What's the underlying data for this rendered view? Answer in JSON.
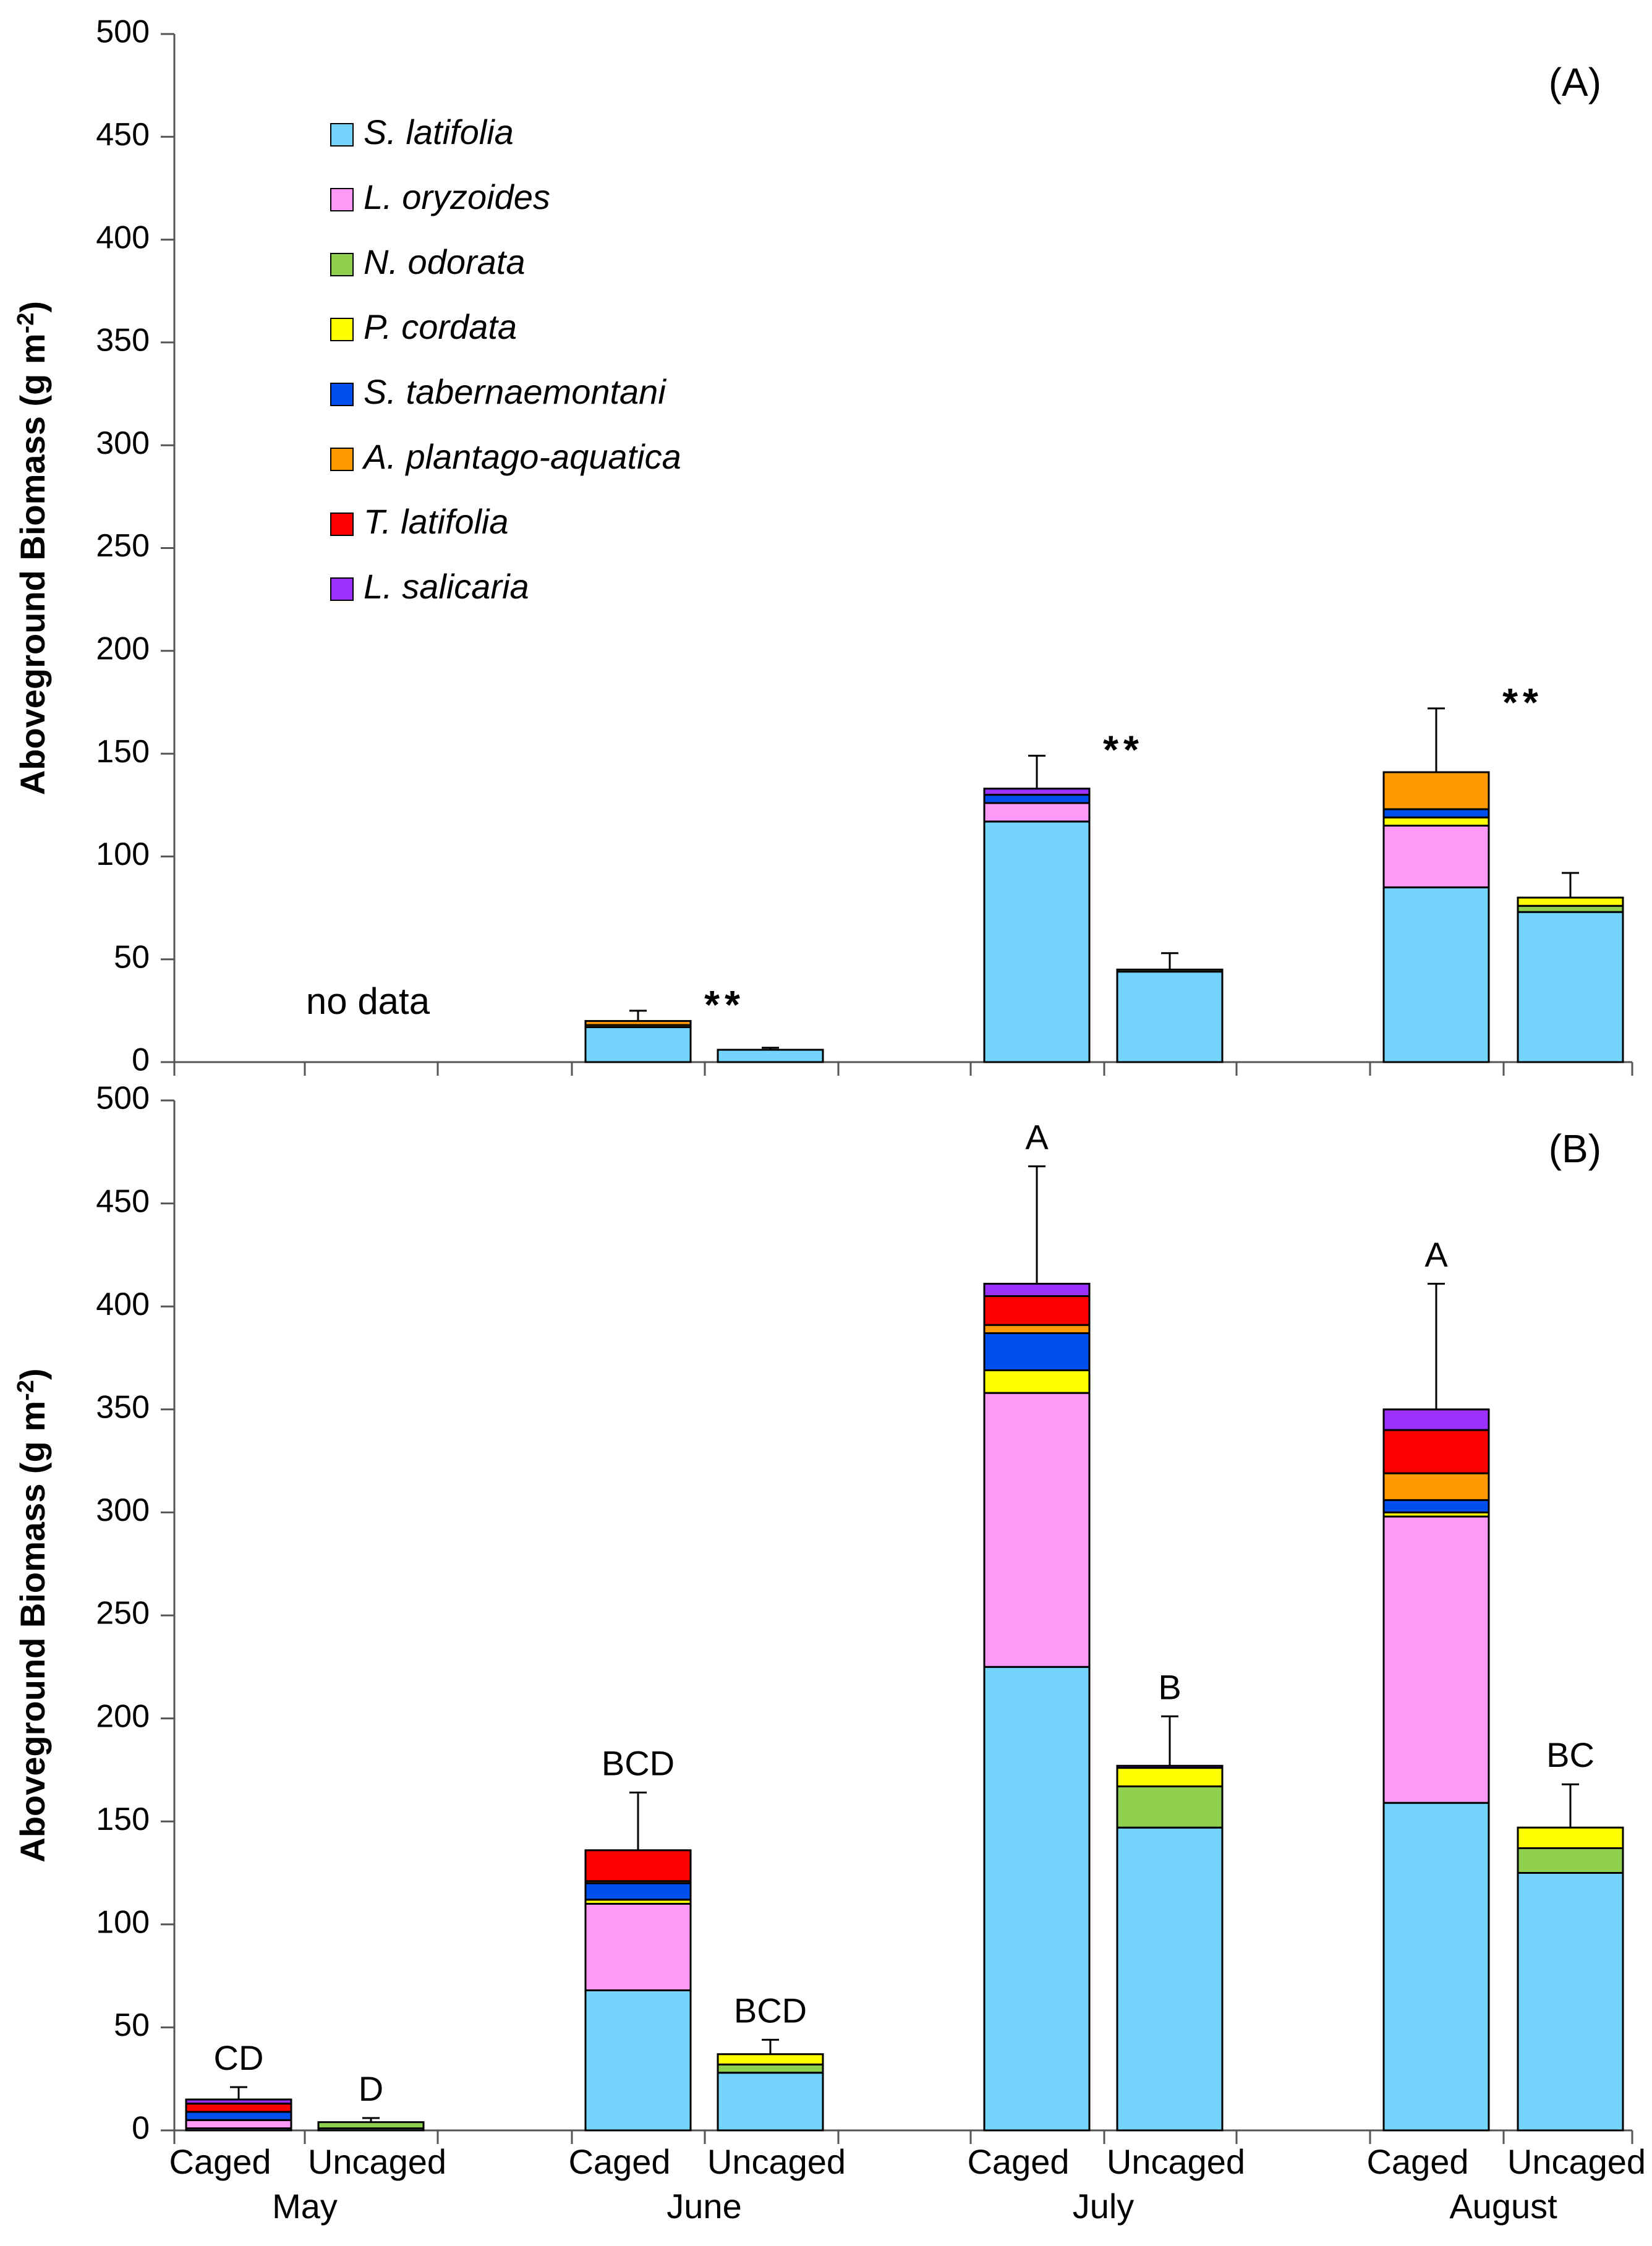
{
  "chart_data": [
    {
      "type": "bar",
      "stacked": true,
      "panel": "(A)",
      "ylabel": "Aboveground Biomass (g m-2)",
      "ylabel_base": "Aboveground Biomass (g m",
      "ylabel_sup": "-2",
      "ylabel_close": ")",
      "ylim": [
        0,
        500
      ],
      "yticks": [
        0,
        50,
        100,
        150,
        200,
        250,
        300,
        350,
        400,
        450,
        500
      ],
      "groups": [
        "May",
        "June",
        "July",
        "August"
      ],
      "categories": [
        "Caged",
        "Uncaged",
        "Caged",
        "Uncaged",
        "Caged",
        "Uncaged",
        "Caged",
        "Uncaged"
      ],
      "series": [
        {
          "name": "S. latifolia",
          "color": "#75d4fb",
          "values": [
            null,
            null,
            17,
            6,
            117,
            44,
            85,
            73
          ]
        },
        {
          "name": "L. oryzoides",
          "color": "#fd99f7",
          "values": [
            null,
            null,
            0,
            0,
            9,
            0,
            30,
            0
          ]
        },
        {
          "name": "N. odorata",
          "color": "#8fd14f",
          "values": [
            null,
            null,
            0,
            0,
            0,
            1,
            0,
            3
          ]
        },
        {
          "name": "P. cordata",
          "color": "#ffff00",
          "values": [
            null,
            null,
            1,
            0,
            0,
            0,
            4,
            4
          ]
        },
        {
          "name": "S. tabernaemontani",
          "color": "#0050ef",
          "values": [
            null,
            null,
            0,
            0,
            4,
            0,
            4,
            0
          ]
        },
        {
          "name": "A. plantago-aquatica",
          "color": "#ff9a00",
          "values": [
            null,
            null,
            2,
            0,
            0,
            0,
            18,
            0
          ]
        },
        {
          "name": "T. latifolia",
          "color": "#ff0000",
          "values": [
            null,
            null,
            0,
            0,
            0,
            0,
            0,
            0
          ]
        },
        {
          "name": "L. salicaria",
          "color": "#9b30ff",
          "values": [
            null,
            null,
            0,
            0,
            3,
            0,
            0,
            0
          ]
        }
      ],
      "error_tops": [
        null,
        null,
        25,
        7,
        149,
        53,
        172,
        92
      ],
      "annotations": [
        "",
        "",
        "**",
        "",
        "**",
        "",
        "**",
        ""
      ],
      "no_data_label": "no data"
    },
    {
      "type": "bar",
      "stacked": true,
      "panel": "(B)",
      "ylabel": "Aboveground Biomass (g m-2)",
      "ylabel_base": "Aboveground Biomass (g m",
      "ylabel_sup": "-2",
      "ylabel_close": ")",
      "ylim": [
        0,
        500
      ],
      "yticks": [
        0,
        50,
        100,
        150,
        200,
        250,
        300,
        350,
        400,
        450,
        500
      ],
      "groups": [
        "May",
        "June",
        "July",
        "August"
      ],
      "categories": [
        "Caged",
        "Uncaged",
        "Caged",
        "Uncaged",
        "Caged",
        "Uncaged",
        "Caged",
        "Uncaged"
      ],
      "series": [
        {
          "name": "S. latifolia",
          "color": "#75d4fb",
          "values": [
            1,
            1,
            68,
            28,
            225,
            147,
            159,
            125
          ]
        },
        {
          "name": "L. oryzoides",
          "color": "#fd99f7",
          "values": [
            4,
            0,
            42,
            0,
            133,
            0,
            139,
            0
          ]
        },
        {
          "name": "N. odorata",
          "color": "#8fd14f",
          "values": [
            0,
            3,
            0,
            4,
            0,
            20,
            0,
            12
          ]
        },
        {
          "name": "P. cordata",
          "color": "#ffff00",
          "values": [
            0,
            0,
            2,
            5,
            11,
            9,
            2,
            10
          ]
        },
        {
          "name": "S. tabernaemontani",
          "color": "#0050ef",
          "values": [
            4,
            0,
            8,
            0,
            18,
            0,
            6,
            0
          ]
        },
        {
          "name": "A. plantago-aquatica",
          "color": "#ff9a00",
          "values": [
            0,
            0,
            1,
            0,
            4,
            0,
            13,
            0
          ]
        },
        {
          "name": "T. latifolia",
          "color": "#ff0000",
          "values": [
            4,
            0,
            15,
            0,
            14,
            0,
            21,
            0
          ]
        },
        {
          "name": "L. salicaria",
          "color": "#9b30ff",
          "values": [
            2,
            0,
            0,
            0,
            6,
            1,
            10,
            0
          ]
        }
      ],
      "error_tops": [
        21,
        6,
        164,
        44,
        468,
        201,
        411,
        168
      ],
      "annotations": [
        "CD",
        "D",
        "BCD",
        "BCD",
        "A",
        "B",
        "A",
        "BC"
      ]
    }
  ]
}
